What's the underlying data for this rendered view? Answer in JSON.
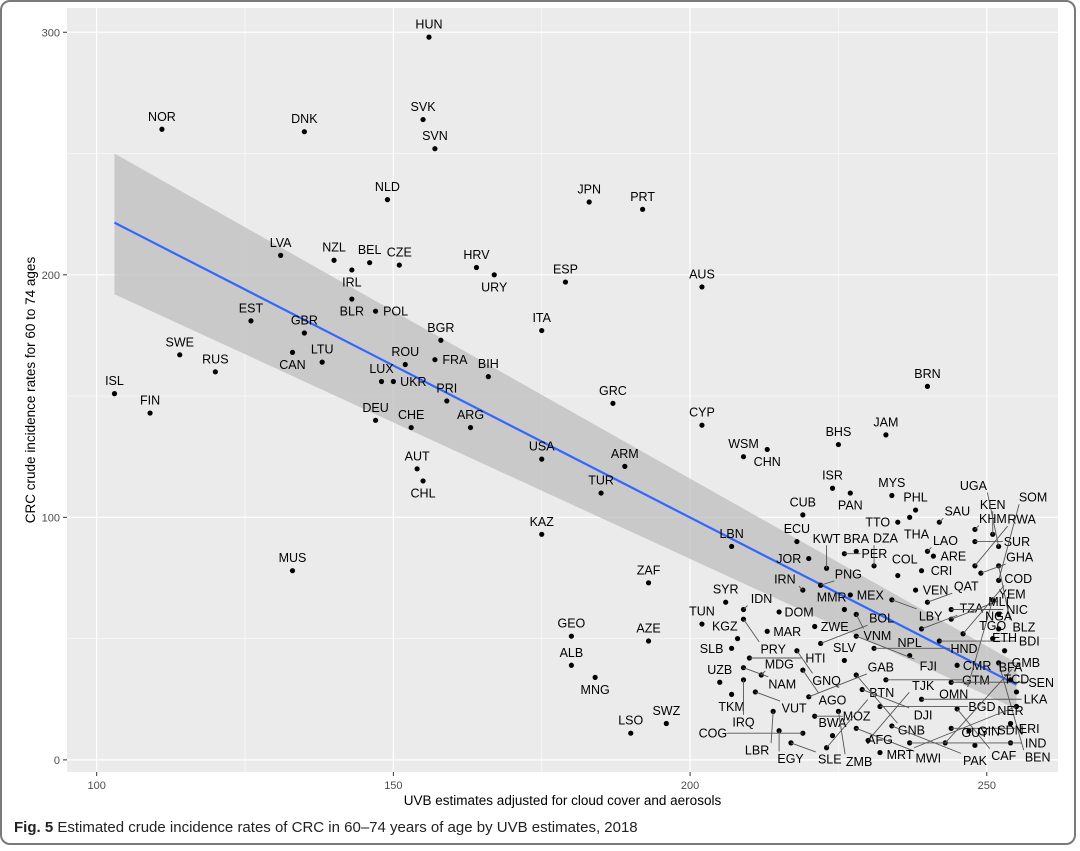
{
  "caption": {
    "label": "Fig. 5",
    "text": "Estimated crude incidence rates of CRC in 60–74 years of age by UVB estimates, 2018"
  },
  "chart_data": {
    "type": "scatter",
    "title": "",
    "xlabel": "UVB estimates adjusted for cloud cover and aerosols",
    "ylabel": "CRC crude incidence rates for 60 to 74 ages",
    "xlim": [
      95,
      262
    ],
    "ylim": [
      -5,
      310
    ],
    "xticks": [
      100,
      150,
      200,
      250
    ],
    "yticks": [
      0,
      100,
      200,
      300
    ],
    "colors": {
      "panel": "#ebebeb",
      "grid": "#ffffff",
      "point": "#000000",
      "line": "#3366ff",
      "ribbon": "#bdbdbd",
      "text": "#000000",
      "leader": "#555555"
    },
    "fit": {
      "x": [
        103,
        255
      ],
      "y": [
        221.5,
        31
      ],
      "ci_low": [
        192,
        21
      ],
      "ci_high": [
        250,
        40
      ]
    },
    "points": [
      {
        "label": "HUN",
        "x": 156,
        "y": 298
      },
      {
        "label": "SVK",
        "x": 155,
        "y": 264
      },
      {
        "label": "SVN",
        "x": 157,
        "y": 252
      },
      {
        "label": "NOR",
        "x": 111,
        "y": 260
      },
      {
        "label": "DNK",
        "x": 135,
        "y": 259
      },
      {
        "label": "NLD",
        "x": 149,
        "y": 231
      },
      {
        "label": "JPN",
        "x": 183,
        "y": 230
      },
      {
        "label": "PRT",
        "x": 192,
        "y": 227
      },
      {
        "label": "LVA",
        "x": 131,
        "y": 208
      },
      {
        "label": "NZL",
        "x": 140,
        "y": 206
      },
      {
        "label": "BEL",
        "x": 146,
        "y": 205
      },
      {
        "label": "IRL",
        "x": 143,
        "y": 202
      },
      {
        "label": "CZE",
        "x": 151,
        "y": 204
      },
      {
        "label": "HRV",
        "x": 164,
        "y": 203
      },
      {
        "label": "URY",
        "x": 167,
        "y": 200
      },
      {
        "label": "ESP",
        "x": 179,
        "y": 197
      },
      {
        "label": "AUS",
        "x": 202,
        "y": 195
      },
      {
        "label": "BLR",
        "x": 143,
        "y": 190
      },
      {
        "label": "POL",
        "x": 147,
        "y": 185
      },
      {
        "label": "EST",
        "x": 126,
        "y": 181
      },
      {
        "label": "GBR",
        "x": 135,
        "y": 176
      },
      {
        "label": "ITA",
        "x": 175,
        "y": 177
      },
      {
        "label": "BGR",
        "x": 158,
        "y": 173
      },
      {
        "label": "CAN",
        "x": 133,
        "y": 168
      },
      {
        "label": "SWE",
        "x": 114,
        "y": 167
      },
      {
        "label": "ROU",
        "x": 152,
        "y": 163
      },
      {
        "label": "FRA",
        "x": 157,
        "y": 165
      },
      {
        "label": "LTU",
        "x": 138,
        "y": 164
      },
      {
        "label": "RUS",
        "x": 120,
        "y": 160
      },
      {
        "label": "UKR",
        "x": 150,
        "y": 156
      },
      {
        "label": "BIH",
        "x": 166,
        "y": 158
      },
      {
        "label": "ISL",
        "x": 103,
        "y": 151
      },
      {
        "label": "BRN",
        "x": 240,
        "y": 154
      },
      {
        "label": "FIN",
        "x": 109,
        "y": 143
      },
      {
        "label": "LUX",
        "x": 148,
        "y": 156
      },
      {
        "label": "PRI",
        "x": 159,
        "y": 148
      },
      {
        "label": "GRC",
        "x": 187,
        "y": 147
      },
      {
        "label": "DEU",
        "x": 147,
        "y": 140
      },
      {
        "label": "ARG",
        "x": 163,
        "y": 137
      },
      {
        "label": "CHE",
        "x": 153,
        "y": 137
      },
      {
        "label": "CYP",
        "x": 202,
        "y": 138
      },
      {
        "label": "JAM",
        "x": 233,
        "y": 134
      },
      {
        "label": "BHS",
        "x": 225,
        "y": 130
      },
      {
        "label": "CHN",
        "x": 213,
        "y": 128
      },
      {
        "label": "WSM",
        "x": 209,
        "y": 125
      },
      {
        "label": "USA",
        "x": 175,
        "y": 124
      },
      {
        "label": "ARM",
        "x": 189,
        "y": 121
      },
      {
        "label": "AUT",
        "x": 154,
        "y": 120
      },
      {
        "label": "CHL",
        "x": 155,
        "y": 115
      },
      {
        "label": "TUR",
        "x": 185,
        "y": 110
      },
      {
        "label": "KAZ",
        "x": 175,
        "y": 93
      },
      {
        "label": "LBN",
        "x": 207,
        "y": 88
      },
      {
        "label": "MUS",
        "x": 133,
        "y": 78
      },
      {
        "label": "ZAF",
        "x": 193,
        "y": 73
      },
      {
        "label": "GEO",
        "x": 180,
        "y": 51
      },
      {
        "label": "AZE",
        "x": 193,
        "y": 49
      },
      {
        "label": "ALB",
        "x": 180,
        "y": 39
      },
      {
        "label": "MNG",
        "x": 184,
        "y": 34
      },
      {
        "label": "SWZ",
        "x": 196,
        "y": 15
      },
      {
        "label": "LSO",
        "x": 190,
        "y": 11
      },
      {
        "label": "MYS",
        "x": 234,
        "y": 109
      },
      {
        "label": "ISR",
        "x": 224,
        "y": 112
      },
      {
        "label": "PAN",
        "x": 227,
        "y": 110
      },
      {
        "label": "CUB",
        "x": 219,
        "y": 101
      },
      {
        "label": "PHL",
        "x": 238,
        "y": 103
      },
      {
        "label": "THA",
        "x": 237,
        "y": 100
      },
      {
        "label": "TTO",
        "x": 235,
        "y": 98
      },
      {
        "label": "SAU",
        "x": 242,
        "y": 98
      },
      {
        "label": "KHM",
        "x": 248,
        "y": 95
      },
      {
        "label": "KEN",
        "x": 251,
        "y": 93
      },
      {
        "label": "ECU",
        "x": 218,
        "y": 90
      },
      {
        "label": "PER",
        "x": 226,
        "y": 85
      },
      {
        "label": "BRA",
        "x": 228,
        "y": 86
      },
      {
        "label": "LAO",
        "x": 240,
        "y": 86
      },
      {
        "label": "ARE",
        "x": 241,
        "y": 84
      },
      {
        "label": "UGA",
        "x": 252,
        "y": 88
      },
      {
        "label": "SUR",
        "x": 248,
        "y": 90
      },
      {
        "label": "DZA",
        "x": 231,
        "y": 80
      },
      {
        "label": "JOR",
        "x": 220,
        "y": 83
      },
      {
        "label": "KWT",
        "x": 223,
        "y": 79
      },
      {
        "label": "CRI",
        "x": 239,
        "y": 78
      },
      {
        "label": "RWA",
        "x": 248,
        "y": 80
      },
      {
        "label": "GHA",
        "x": 249,
        "y": 77
      },
      {
        "label": "BLZ",
        "x": 252,
        "y": 80
      },
      {
        "label": "COL",
        "x": 235,
        "y": 76
      },
      {
        "label": "SOM",
        "x": 252,
        "y": 74
      },
      {
        "label": "PNG",
        "x": 222,
        "y": 72
      },
      {
        "label": "IRN",
        "x": 219,
        "y": 70
      },
      {
        "label": "MEX",
        "x": 227,
        "y": 68
      },
      {
        "label": "VEN",
        "x": 238,
        "y": 70
      },
      {
        "label": "OMN",
        "x": 251,
        "y": 66
      },
      {
        "label": "SYR",
        "x": 206,
        "y": 65
      },
      {
        "label": "LBY",
        "x": 234,
        "y": 66
      },
      {
        "label": "QAT",
        "x": 240,
        "y": 65
      },
      {
        "label": "NIC",
        "x": 244,
        "y": 62
      },
      {
        "label": "MLI",
        "x": 252,
        "y": 60
      },
      {
        "label": "IDN",
        "x": 209,
        "y": 62
      },
      {
        "label": "DOM",
        "x": 215,
        "y": 61
      },
      {
        "label": "MMR",
        "x": 226,
        "y": 62
      },
      {
        "label": "VNM",
        "x": 228,
        "y": 60
      },
      {
        "label": "YEM",
        "x": 244,
        "y": 58
      },
      {
        "label": "NGA",
        "x": 252,
        "y": 54
      },
      {
        "label": "TUN",
        "x": 202,
        "y": 56
      },
      {
        "label": "PRY",
        "x": 209,
        "y": 58
      },
      {
        "label": "ZWE",
        "x": 221,
        "y": 55
      },
      {
        "label": "TZA",
        "x": 239,
        "y": 54
      },
      {
        "label": "COD",
        "x": 246,
        "y": 52
      },
      {
        "label": "TGO",
        "x": 251,
        "y": 50
      },
      {
        "label": "MAR",
        "x": 213,
        "y": 53
      },
      {
        "label": "FJI",
        "x": 228,
        "y": 51
      },
      {
        "label": "BDI",
        "x": 242,
        "y": 49
      },
      {
        "label": "KGZ",
        "x": 208,
        "y": 50
      },
      {
        "label": "BOL",
        "x": 222,
        "y": 48
      },
      {
        "label": "HND",
        "x": 231,
        "y": 46
      },
      {
        "label": "ETH",
        "x": 253,
        "y": 45
      },
      {
        "label": "SLB",
        "x": 207,
        "y": 46
      },
      {
        "label": "GNQ",
        "x": 218,
        "y": 45
      },
      {
        "label": "NPL",
        "x": 237,
        "y": 43
      },
      {
        "label": "BEN",
        "x": 252,
        "y": 40
      },
      {
        "label": "HTI",
        "x": 210,
        "y": 42
      },
      {
        "label": "SLV",
        "x": 226,
        "y": 41
      },
      {
        "label": "CMR",
        "x": 245,
        "y": 39
      },
      {
        "label": "NAM",
        "x": 209,
        "y": 38
      },
      {
        "label": "AGO",
        "x": 219,
        "y": 37
      },
      {
        "label": "GNB",
        "x": 228,
        "y": 35
      },
      {
        "label": "GTM",
        "x": 233,
        "y": 33
      },
      {
        "label": "BFA",
        "x": 254,
        "y": 33
      },
      {
        "label": "MDG",
        "x": 212,
        "y": 35
      },
      {
        "label": "SEN",
        "x": 244,
        "y": 32
      },
      {
        "label": "IRQ",
        "x": 209,
        "y": 33
      },
      {
        "label": "UZB",
        "x": 205,
        "y": 32
      },
      {
        "label": "DJI",
        "x": 229,
        "y": 29
      },
      {
        "label": "TCD",
        "x": 255,
        "y": 28
      },
      {
        "label": "VUT",
        "x": 211,
        "y": 28
      },
      {
        "label": "GAB",
        "x": 220,
        "y": 26
      },
      {
        "label": "TKM",
        "x": 207,
        "y": 27
      },
      {
        "label": "LKA",
        "x": 239,
        "y": 25
      },
      {
        "label": "BGD",
        "x": 232,
        "y": 22
      },
      {
        "label": "CAF",
        "x": 245,
        "y": 21
      },
      {
        "label": "MRT",
        "x": 255,
        "y": 22
      },
      {
        "label": "ZMB",
        "x": 225,
        "y": 20
      },
      {
        "label": "MOZ",
        "x": 221,
        "y": 18
      },
      {
        "label": "LBR",
        "x": 214,
        "y": 20
      },
      {
        "label": "PAK",
        "x": 234,
        "y": 14
      },
      {
        "label": "ERI",
        "x": 244,
        "y": 13
      },
      {
        "label": "GIN",
        "x": 247,
        "y": 12
      },
      {
        "label": "MWI",
        "x": 228,
        "y": 13
      },
      {
        "label": "EGY",
        "x": 215,
        "y": 12
      },
      {
        "label": "COG",
        "x": 219,
        "y": 11
      },
      {
        "label": "BWA",
        "x": 224,
        "y": 10
      },
      {
        "label": "NER",
        "x": 254,
        "y": 15
      },
      {
        "label": "TJK",
        "x": 230,
        "y": 8
      },
      {
        "label": "IND",
        "x": 237,
        "y": 7
      },
      {
        "label": "GMB",
        "x": 243,
        "y": 7
      },
      {
        "label": "GUY",
        "x": 248,
        "y": 6
      },
      {
        "label": "SDN",
        "x": 254,
        "y": 7
      },
      {
        "label": "SLE",
        "x": 217,
        "y": 7
      },
      {
        "label": "BTN",
        "x": 223,
        "y": 5
      },
      {
        "label": "AFG",
        "x": 232,
        "y": 3
      }
    ]
  }
}
